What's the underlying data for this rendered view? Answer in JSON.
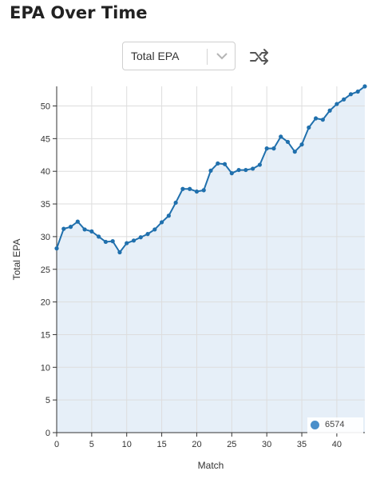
{
  "header": {
    "title": "EPA Over Time"
  },
  "controls": {
    "metric_select": {
      "value": "Total EPA"
    },
    "shuffle_icon": "shuffle-icon",
    "chevron_icon": "chevron-down-icon"
  },
  "colors": {
    "line": "#2070ad",
    "fill": "#e6eff8",
    "grid": "#dddddd",
    "legend_dot": "#4a8fca"
  },
  "chart_data": {
    "type": "area",
    "title": "",
    "xlabel": "Match",
    "ylabel": "Total EPA",
    "xlim": [
      0,
      44
    ],
    "ylim": [
      0,
      53
    ],
    "xticks": [
      0,
      5,
      10,
      15,
      20,
      25,
      30,
      35,
      40
    ],
    "yticks": [
      0,
      5,
      10,
      15,
      20,
      25,
      30,
      35,
      40,
      45,
      50
    ],
    "grid": true,
    "legend_position": "bottom-right",
    "series": [
      {
        "name": "6574",
        "x": [
          0,
          1,
          2,
          3,
          4,
          5,
          6,
          7,
          8,
          9,
          10,
          11,
          12,
          13,
          14,
          15,
          16,
          17,
          18,
          19,
          20,
          21,
          22,
          23,
          24,
          25,
          26,
          27,
          28,
          29,
          30,
          31,
          32,
          33,
          34,
          35,
          36,
          37,
          38,
          39,
          40,
          41,
          42,
          43,
          44
        ],
        "y": [
          28.2,
          31.2,
          31.5,
          32.3,
          31.1,
          30.8,
          30.0,
          29.2,
          29.3,
          27.6,
          29.0,
          29.4,
          29.9,
          30.4,
          31.1,
          32.2,
          33.2,
          35.2,
          37.3,
          37.3,
          36.9,
          37.1,
          40.1,
          41.2,
          41.1,
          39.7,
          40.2,
          40.2,
          40.4,
          41.0,
          43.5,
          43.5,
          45.3,
          44.5,
          43.0,
          44.1,
          46.7,
          48.1,
          47.9,
          49.3,
          50.3,
          51.0,
          51.8,
          52.2,
          53.0
        ]
      }
    ]
  }
}
